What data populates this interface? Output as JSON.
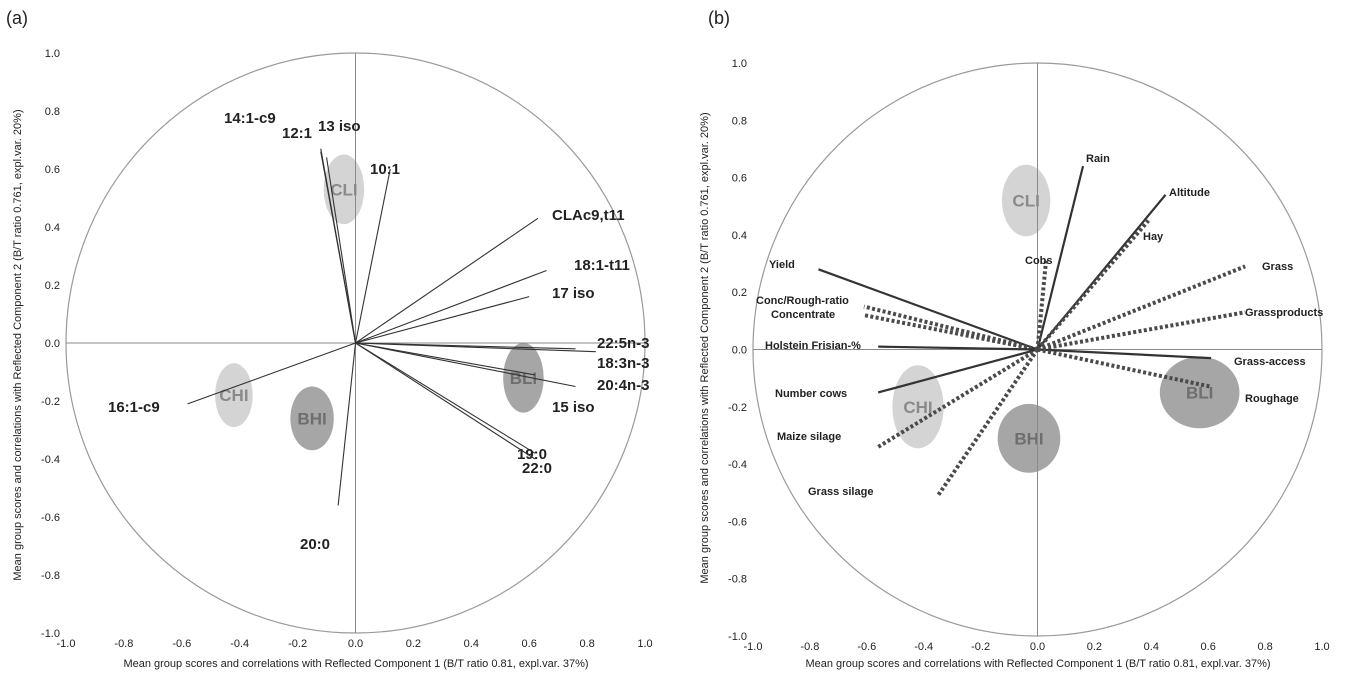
{
  "chart_data": [
    {
      "panel": "(a)",
      "type": "scatter",
      "subtype": "correlation-loadings-circle",
      "xlabel": "Mean group scores and correlations with Reflected Component 1 (B/T ratio 0.81, expl.var. 37%)",
      "ylabel": "Mean group scores and correlations with Reflected Component  2 (B/T ratio 0.761, expl.var. 20%)",
      "xlim": [
        -1.0,
        1.0
      ],
      "ylim": [
        -1.0,
        1.0
      ],
      "x_ticks": [
        "-1.0",
        "-0.8",
        "-0.6",
        "-0.4",
        "-0.2",
        "0.0",
        "0.2",
        "0.4",
        "0.6",
        "0.8",
        "1.0"
      ],
      "y_ticks": [
        "1.0",
        "0.8",
        "0.6",
        "0.4",
        "0.2",
        "0.0",
        "-0.2",
        "-0.4",
        "-0.6",
        "-0.8",
        "-1.0"
      ],
      "unit_circle": true,
      "groups": [
        {
          "label": "CLI",
          "x": -0.04,
          "y": 0.53,
          "rx": 0.07,
          "ry": 0.12,
          "color": "#d4d4d4"
        },
        {
          "label": "CHI",
          "x": -0.42,
          "y": -0.18,
          "rx": 0.065,
          "ry": 0.11,
          "color": "#d4d4d4"
        },
        {
          "label": "BHI",
          "x": -0.15,
          "y": -0.26,
          "rx": 0.075,
          "ry": 0.11,
          "color": "#a6a6a6"
        },
        {
          "label": "BLI",
          "x": 0.58,
          "y": -0.12,
          "rx": 0.07,
          "ry": 0.12,
          "color": "#a6a6a6"
        }
      ],
      "vectors": [
        {
          "label": "14:1-c9",
          "x": -0.12,
          "y": 0.66,
          "style": "solid"
        },
        {
          "label": "12:1",
          "x": -0.12,
          "y": 0.67,
          "style": "solid"
        },
        {
          "label": "13 iso",
          "x": -0.1,
          "y": 0.64,
          "style": "solid"
        },
        {
          "label": "10:1",
          "x": 0.12,
          "y": 0.6,
          "style": "solid"
        },
        {
          "label": "CLAc9,t11",
          "x": 0.63,
          "y": 0.43,
          "style": "solid"
        },
        {
          "label": "18:1-t11",
          "x": 0.66,
          "y": 0.25,
          "style": "solid"
        },
        {
          "label": "17 iso",
          "x": 0.6,
          "y": 0.16,
          "style": "solid"
        },
        {
          "label": "22:5n-3",
          "x": 0.76,
          "y": -0.02,
          "style": "solid"
        },
        {
          "label": "18:3n-3",
          "x": 0.83,
          "y": -0.03,
          "style": "solid"
        },
        {
          "label": "20:4n-3",
          "x": 0.76,
          "y": -0.15,
          "style": "solid"
        },
        {
          "label": "15 iso",
          "x": 0.62,
          "y": -0.11,
          "style": "solid"
        },
        {
          "label": "19:0",
          "x": 0.62,
          "y": -0.38,
          "style": "solid"
        },
        {
          "label": "22:0",
          "x": 0.62,
          "y": -0.4,
          "style": "solid"
        },
        {
          "label": "20:0",
          "x": -0.06,
          "y": -0.56,
          "style": "solid"
        },
        {
          "label": "16:1-c9",
          "x": -0.58,
          "y": -0.21,
          "style": "solid"
        }
      ]
    },
    {
      "panel": "(b)",
      "type": "scatter",
      "subtype": "correlation-loadings-circle",
      "xlabel": "Mean group scores and correlations with Reflected Component 1 (B/T ratio 0.81, expl.var. 37%)",
      "ylabel": "Mean group scores and correlations with Reflected Component  2 (B/T ratio 0.761, expl.var. 20%)",
      "xlim": [
        -1.0,
        1.0
      ],
      "ylim": [
        -1.0,
        1.0
      ],
      "x_ticks": [
        "-1.0",
        "-0.8",
        "-0.6",
        "-0.4",
        "-0.2",
        "0.0",
        "0.2",
        "0.4",
        "0.6",
        "0.8",
        "1.0"
      ],
      "y_ticks": [
        "1.0",
        "0.8",
        "0.6",
        "0.4",
        "0.2",
        "0.0",
        "-0.2",
        "-0.4",
        "-0.6",
        "-0.8",
        "-1.0"
      ],
      "unit_circle": true,
      "groups": [
        {
          "label": "CLI",
          "x": -0.04,
          "y": 0.52,
          "rx": 0.085,
          "ry": 0.125,
          "color": "#d4d4d4"
        },
        {
          "label": "CHI",
          "x": -0.42,
          "y": -0.2,
          "rx": 0.09,
          "ry": 0.145,
          "color": "#d4d4d4"
        },
        {
          "label": "BHI",
          "x": -0.03,
          "y": -0.31,
          "rx": 0.11,
          "ry": 0.12,
          "color": "#a6a6a6"
        },
        {
          "label": "BLI",
          "x": 0.57,
          "y": -0.15,
          "rx": 0.14,
          "ry": 0.125,
          "color": "#a6a6a6"
        }
      ],
      "vectors": [
        {
          "label": "Rain",
          "x": 0.16,
          "y": 0.64,
          "style": "solid"
        },
        {
          "label": "Altitude",
          "x": 0.45,
          "y": 0.54,
          "style": "solid"
        },
        {
          "label": "Hay",
          "x": 0.39,
          "y": 0.45,
          "style": "dashed"
        },
        {
          "label": "Cobs",
          "x": 0.03,
          "y": 0.31,
          "style": "dashed"
        },
        {
          "label": "Grass",
          "x": 0.73,
          "y": 0.29,
          "style": "dashed"
        },
        {
          "label": "Grassproducts",
          "x": 0.73,
          "y": 0.13,
          "style": "dashed"
        },
        {
          "label": "Grass-access",
          "x": 0.61,
          "y": -0.03,
          "style": "solid"
        },
        {
          "label": "Roughage",
          "x": 0.61,
          "y": -0.13,
          "style": "dashed"
        },
        {
          "label": "Yield",
          "x": -0.77,
          "y": 0.28,
          "style": "solid"
        },
        {
          "label": "Conc/Rough-ratio",
          "x": -0.61,
          "y": 0.15,
          "style": "dashed"
        },
        {
          "label": "Concentrate",
          "x": -0.61,
          "y": 0.12,
          "style": "dashed"
        },
        {
          "label": "Holstein Frisian-%",
          "x": -0.56,
          "y": 0.01,
          "style": "solid"
        },
        {
          "label": "Number cows",
          "x": -0.56,
          "y": -0.15,
          "style": "solid"
        },
        {
          "label": "Maize silage",
          "x": -0.56,
          "y": -0.34,
          "style": "dashed"
        },
        {
          "label": "Grass silage",
          "x": -0.35,
          "y": -0.51,
          "style": "dashed"
        }
      ]
    }
  ]
}
